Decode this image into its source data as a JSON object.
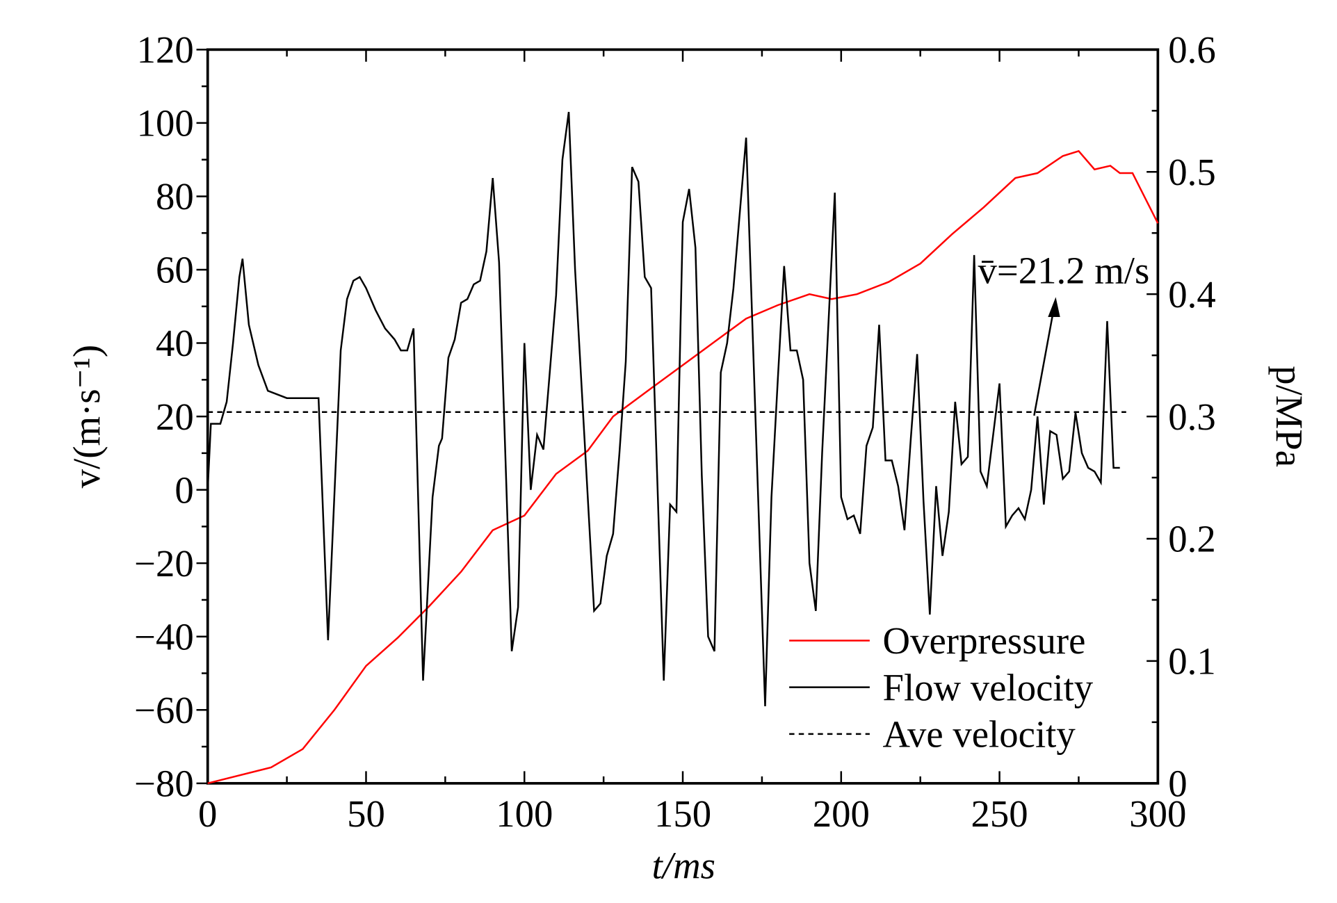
{
  "chart_data": {
    "type": "line",
    "xlabel": "t/ms",
    "ylabel": "v/(m·s⁻¹)",
    "y2label": "p/MPa",
    "annotation": "v̄=21.2 m/s",
    "xlim": [
      0,
      300
    ],
    "xticks": [
      0,
      50,
      100,
      150,
      200,
      250,
      300
    ],
    "ylim": [
      -80,
      120
    ],
    "yticks": [
      {
        "value": -80,
        "label": "−80"
      },
      {
        "value": -60,
        "label": "−60"
      },
      {
        "value": -40,
        "label": "−40"
      },
      {
        "value": -20,
        "label": "−20"
      },
      0,
      20,
      40,
      60,
      80,
      100,
      120
    ],
    "y2lim": [
      0,
      0.6
    ],
    "y2ticks": [
      0,
      0.1,
      0.2,
      0.3,
      0.4,
      0.5,
      0.6
    ],
    "legend": "lower right",
    "series": [
      {
        "name": "Overpressure",
        "color": "#ff0000",
        "axis": "y2",
        "x": [
          0,
          20,
          30,
          40,
          50,
          60,
          70,
          80,
          90,
          100,
          110,
          120,
          128,
          140,
          150,
          160,
          170,
          180,
          190,
          197,
          205,
          215,
          225,
          235,
          245,
          255,
          262,
          270,
          275,
          280,
          285,
          288,
          292,
          300
        ],
        "values": [
          0,
          0.013,
          0.028,
          0.06,
          0.096,
          0.119,
          0.145,
          0.173,
          0.207,
          0.219,
          0.253,
          0.272,
          0.3,
          0.323,
          0.342,
          0.361,
          0.38,
          0.391,
          0.4,
          0.396,
          0.4,
          0.41,
          0.425,
          0.449,
          0.471,
          0.495,
          0.499,
          0.513,
          0.517,
          0.502,
          0.505,
          0.499,
          0.499,
          0.458
        ]
      },
      {
        "name": "Flow velocity",
        "color": "#000000",
        "x": [
          0,
          1,
          4,
          6,
          8,
          10,
          11,
          13,
          16,
          19,
          22,
          25,
          28,
          31,
          33,
          35,
          38,
          42,
          44,
          46,
          48,
          50,
          53,
          56,
          59,
          61,
          63,
          65,
          68,
          71,
          73,
          74,
          76,
          78,
          80,
          82,
          84,
          86,
          88,
          90,
          92,
          96,
          98,
          100,
          102,
          104,
          106,
          110,
          112,
          114,
          116,
          122,
          124,
          126,
          128,
          130,
          132,
          134,
          136,
          138,
          140,
          144,
          146,
          148,
          150,
          152,
          154,
          156,
          158,
          160,
          162,
          164,
          166,
          170,
          176,
          178,
          180,
          182,
          184,
          186,
          188,
          190,
          192,
          194,
          198,
          200,
          202,
          204,
          206,
          208,
          210,
          212,
          214,
          216,
          218,
          220,
          222,
          224,
          226,
          228,
          230,
          232,
          234,
          236,
          238,
          240,
          242,
          244,
          246,
          250,
          252,
          254,
          256,
          258,
          260,
          262,
          264,
          266,
          268,
          270,
          272,
          274,
          276,
          278,
          280,
          282,
          284,
          286,
          288
        ],
        "values": [
          0,
          18,
          18,
          24,
          40,
          58,
          63,
          45,
          34,
          27,
          26,
          25,
          25,
          25,
          25,
          25,
          -41,
          38,
          52,
          57,
          58,
          55,
          49,
          44,
          41,
          38,
          38,
          44,
          -52,
          -2,
          12,
          14,
          36,
          41,
          51,
          52,
          56,
          57,
          65,
          85,
          62,
          -44,
          -32,
          40,
          0,
          15,
          11,
          53,
          90,
          103,
          60,
          -33,
          -31,
          -18,
          -12,
          10,
          35,
          88,
          84,
          58,
          55,
          -52,
          -4,
          -6,
          73,
          82,
          66,
          4,
          -40,
          -44,
          32,
          40,
          55,
          96,
          -59,
          -2,
          30,
          61,
          38,
          38,
          30,
          -20,
          -33,
          10,
          81,
          -2,
          -8,
          -7,
          -12,
          12,
          17,
          45,
          8,
          8,
          1,
          -11,
          14,
          37,
          -3,
          -34,
          1,
          -18,
          -6,
          24,
          7,
          9,
          64,
          5,
          1,
          29,
          -10,
          -7,
          -5,
          -8,
          0,
          20,
          -4,
          16,
          15,
          3,
          5,
          21,
          10,
          6,
          5,
          2,
          46,
          6,
          6
        ]
      },
      {
        "name": "Ave velocity",
        "color": "#000000",
        "dash": true,
        "x": [
          0,
          290
        ],
        "values": [
          21.2,
          21.2
        ]
      }
    ]
  }
}
